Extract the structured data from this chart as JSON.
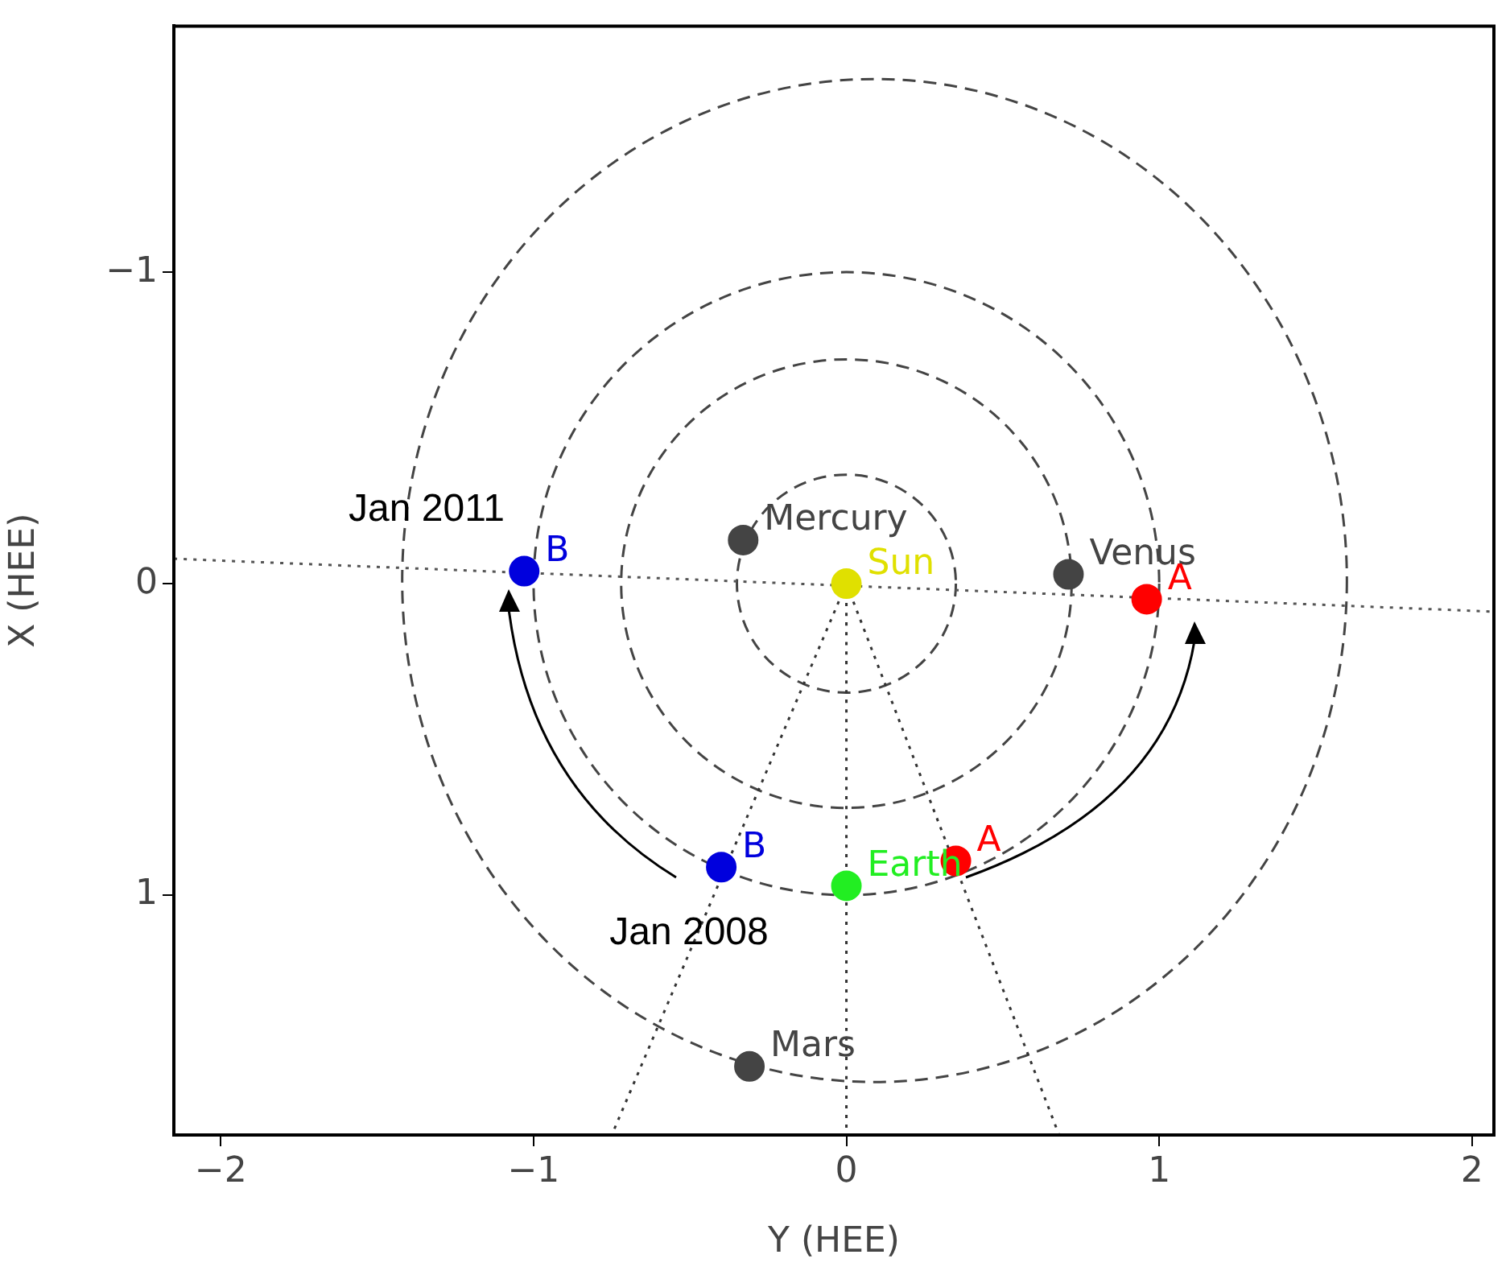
{
  "chart_data": {
    "type": "scatter",
    "xlabel": "Y (HEE)",
    "ylabel": "X (HEE)",
    "xlim": [
      -2.15,
      2.07
    ],
    "ylim": [
      1.77,
      -1.79
    ],
    "xticks": [
      {
        "value": -2,
        "label": "−2"
      },
      {
        "value": -1,
        "label": "−1"
      },
      0,
      1,
      2
    ],
    "yticks": [
      {
        "value": -1,
        "label": "−1"
      },
      0,
      1
    ],
    "series": [
      {
        "type": "line",
        "color": "#555555",
        "line_style": "dotted",
        "x": [
          -2.15,
          2.07
        ],
        "values": [
          -0.08,
          0.09
        ]
      },
      {
        "type": "line",
        "color": "#333333",
        "line_style": "dotted",
        "x": [
          0,
          -0.75
        ],
        "values": [
          0,
          1.77
        ]
      },
      {
        "type": "line",
        "color": "#333333",
        "line_style": "dotted",
        "x": [
          0,
          0
        ],
        "values": [
          0,
          1.77
        ]
      },
      {
        "type": "line",
        "color": "#333333",
        "line_style": "dotted",
        "x": [
          0,
          0.68
        ],
        "values": [
          0,
          1.77
        ]
      },
      {
        "name": "Sun",
        "color": "#e0e000",
        "marker": "circle",
        "x": [
          0
        ],
        "values": [
          0
        ]
      },
      {
        "name": "Mercury",
        "color": "#444444",
        "marker": "circle",
        "x": [
          -0.33
        ],
        "values": [
          -0.14
        ]
      },
      {
        "name": "Venus",
        "color": "#444444",
        "marker": "circle",
        "x": [
          0.71
        ],
        "values": [
          -0.03
        ]
      },
      {
        "name": "Earth",
        "color": "#22ee22",
        "marker": "circle",
        "x": [
          0
        ],
        "values": [
          0.97
        ]
      },
      {
        "name": "Mars",
        "color": "#444444",
        "marker": "circle",
        "x": [
          -0.31
        ],
        "values": [
          1.55
        ]
      },
      {
        "name": "A",
        "color": "#ff0000",
        "marker": "circle",
        "x": [
          0.35,
          0.96
        ],
        "values": [
          0.89,
          0.05
        ]
      },
      {
        "name": "B",
        "color": "#0000dd",
        "marker": "circle",
        "x": [
          -0.4,
          -1.03
        ],
        "values": [
          0.91,
          -0.04
        ]
      }
    ],
    "annotations": [
      "Jan 2011",
      "Jan 2008"
    ]
  }
}
